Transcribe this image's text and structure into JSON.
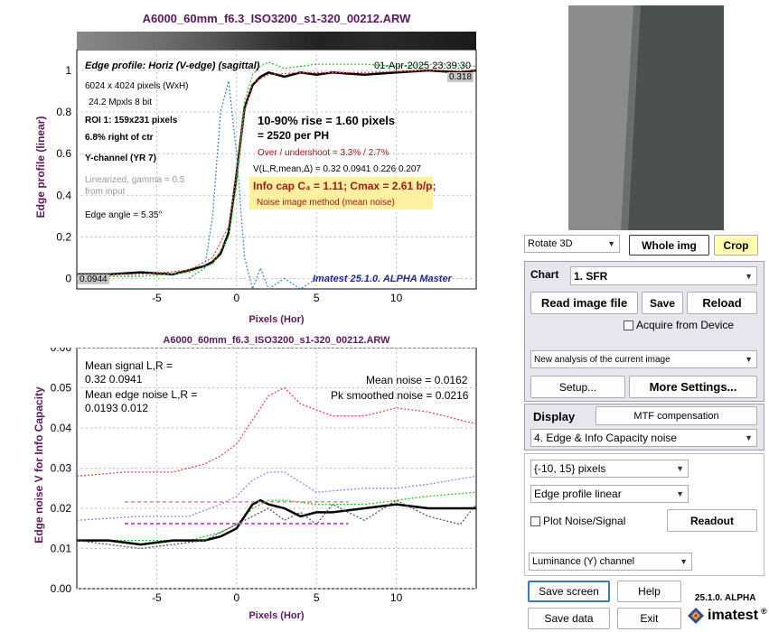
{
  "top_chart": {
    "title": "A6000_60mm_f6.3_ISO3200_s1-320_00212.ARW",
    "subtitle": "Edge profile: Horiz (V-edge) (sagittal)",
    "timestamp": "01-Apr-2025 23:39:30",
    "ylabel": "Edge profile (linear)",
    "xlabel": "Pixels (Hor)",
    "info_lines": [
      "6024 x 4024 pixels (WxH)",
      "24.2 Mpxls   8 bit"
    ],
    "roi": "ROI 1:  159x231 pixels",
    "pos": "6.8% right of ctr",
    "channel": "Y-channel  (YR 7)",
    "linearized": [
      "Linearized, gamma = 0.5",
      "from input"
    ],
    "edge_angle": "Edge angle = 5.35°",
    "rise": "10-90% rise = 1.60 pixels",
    "per_ph": "=   2520 per PH",
    "overshoot": "Over / undershoot = 3.3% /  2.7%",
    "vstats": "V(L,R,mean,Δ) = 0.32  0.0941  0.226  0.207",
    "infocap": "Info cap C₄ = 1.11;  Cmax = 2.61 b/p;",
    "noise_method": "Noise image method (mean noise)",
    "label_hi": "0.318",
    "label_lo": "0.0944",
    "watermark": "Imatest 25.1.0. ALPHA Master"
  },
  "bottom_chart": {
    "title": "A6000_60mm_f6.3_ISO3200_s1-320_00212.ARW",
    "ylabel": "Edge noise V for Info Capacity",
    "xlabel": "Pixels (Hor)",
    "mean_signal": [
      "Mean signal L,R =",
      "  0.32  0.0941"
    ],
    "mean_edge_noise": [
      "Mean edge noise L,R =",
      "  0.0193  0.012"
    ],
    "mean_noise": "Mean noise = 0.0162",
    "pk_noise": "Pk smoothed noise = 0.0216"
  },
  "chart_data": [
    {
      "type": "line",
      "title": "A6000_60mm_f6.3_ISO3200_s1-320_00212.ARW",
      "xlabel": "Pixels (Hor)",
      "ylabel": "Edge profile (linear)",
      "xlim": [
        -10,
        15
      ],
      "ylim": [
        -0.05,
        1.1
      ],
      "xticks": [
        -5,
        0,
        5,
        10
      ],
      "yticks": [
        0,
        0.2,
        0.4,
        0.6,
        0.8,
        1
      ],
      "grid": true,
      "series": [
        {
          "color": "#000000",
          "x": [
            -10,
            -8,
            -6,
            -4,
            -3,
            -2,
            -1.5,
            -1,
            -0.5,
            0,
            0.5,
            1,
            1.5,
            2,
            3,
            4,
            5,
            6,
            8,
            10,
            12,
            14,
            15
          ],
          "y": [
            0.02,
            0.02,
            0.03,
            0.02,
            0.04,
            0.06,
            0.08,
            0.12,
            0.22,
            0.5,
            0.82,
            0.93,
            0.97,
            0.99,
            0.97,
            0.99,
            0.98,
            0.99,
            0.98,
            0.99,
            1.0,
            0.99,
            1.0
          ]
        },
        {
          "color": "#22cc22",
          "x": [
            -10,
            -6,
            -3,
            -1.5,
            -0.5,
            0,
            0.5,
            1,
            1.5,
            2,
            3,
            5,
            8,
            10,
            12,
            15
          ],
          "y": [
            0.01,
            0.01,
            0.03,
            0.07,
            0.2,
            0.45,
            0.85,
            0.98,
            1.02,
            1.04,
            1.01,
            1.03,
            1.03,
            1.02,
            1.03,
            1.02
          ]
        },
        {
          "color": "#ee4444",
          "x": [
            -10,
            -6,
            -3,
            -1.5,
            -0.5,
            0,
            0.5,
            1,
            2,
            4,
            8,
            12,
            15
          ],
          "y": [
            0.02,
            0.02,
            0.04,
            0.1,
            0.25,
            0.5,
            0.8,
            0.94,
            0.98,
            0.99,
            0.99,
            1.0,
            1.0
          ]
        },
        {
          "color": "#4488bb",
          "x": [
            -3,
            -2,
            -1.5,
            -1,
            -0.5,
            0,
            0.5,
            1,
            1.5,
            2,
            3,
            4,
            5
          ],
          "y": [
            0.0,
            0.05,
            0.3,
            0.8,
            0.95,
            0.6,
            0.1,
            -0.05,
            0.05,
            -0.05,
            0.0,
            -0.05,
            0.0
          ]
        }
      ]
    },
    {
      "type": "line",
      "title": "A6000_60mm_f6.3_ISO3200_s1-320_00212.ARW",
      "xlabel": "Pixels (Hor)",
      "ylabel": "Edge noise V for Info Capacity",
      "xlim": [
        -10,
        15
      ],
      "ylim": [
        0,
        0.06
      ],
      "xticks": [
        -5,
        0,
        5,
        10
      ],
      "yticks": [
        0,
        0.01,
        0.02,
        0.03,
        0.04,
        0.05,
        0.06
      ],
      "grid": true,
      "series": [
        {
          "color": "#ee4444",
          "x": [
            -10,
            -7,
            -4,
            -2,
            -1,
            0,
            1,
            2,
            3,
            4,
            6,
            8,
            10,
            12,
            14,
            15
          ],
          "y": [
            0.028,
            0.029,
            0.029,
            0.031,
            0.033,
            0.036,
            0.042,
            0.048,
            0.05,
            0.046,
            0.043,
            0.043,
            0.045,
            0.044,
            0.042,
            0.041
          ]
        },
        {
          "color": "#8888ee",
          "x": [
            -10,
            -6,
            -3,
            -1,
            0,
            1,
            2,
            3,
            5,
            8,
            10,
            12,
            15
          ],
          "y": [
            0.017,
            0.018,
            0.018,
            0.021,
            0.023,
            0.027,
            0.029,
            0.029,
            0.024,
            0.025,
            0.025,
            0.026,
            0.028
          ]
        },
        {
          "color": "#22cc22",
          "x": [
            -10,
            -6,
            -3,
            -1,
            0,
            1,
            2,
            3,
            5,
            8,
            10,
            12,
            15
          ],
          "y": [
            0.012,
            0.012,
            0.012,
            0.014,
            0.016,
            0.02,
            0.022,
            0.022,
            0.021,
            0.021,
            0.022,
            0.023,
            0.024
          ]
        },
        {
          "color": "#000000",
          "x": [
            -10,
            -8,
            -6,
            -4,
            -2,
            -1,
            0,
            0.5,
            1,
            1.5,
            2,
            3,
            4,
            5,
            6,
            8,
            10,
            12,
            14,
            15
          ],
          "y": [
            0.012,
            0.012,
            0.011,
            0.012,
            0.012,
            0.013,
            0.015,
            0.018,
            0.021,
            0.022,
            0.021,
            0.02,
            0.018,
            0.019,
            0.019,
            0.02,
            0.021,
            0.02,
            0.02,
            0.02
          ]
        },
        {
          "color": "#555555",
          "x": [
            -10,
            -8,
            -6,
            -4,
            -2,
            0,
            1,
            2,
            3,
            4,
            5,
            6,
            8,
            10,
            12,
            14,
            15
          ],
          "y": [
            0.012,
            0.011,
            0.01,
            0.011,
            0.012,
            0.016,
            0.018,
            0.02,
            0.017,
            0.019,
            0.016,
            0.021,
            0.017,
            0.022,
            0.018,
            0.016,
            0.021
          ]
        },
        {
          "color": "#dd44dd",
          "x": [
            -7,
            7
          ],
          "y": [
            0.0162,
            0.0162
          ]
        },
        {
          "color": "#ee6688",
          "x": [
            -7,
            7
          ],
          "y": [
            0.0216,
            0.0216
          ]
        }
      ]
    }
  ],
  "right_panel": {
    "rotate_select": "Rotate 3D",
    "whole_img": "Whole img",
    "crop": "Crop",
    "chart_label": "Chart",
    "chart_select": "1. SFR",
    "read_image": "Read image file",
    "save": "Save",
    "reload": "Reload",
    "acquire": "Acquire from Device",
    "analysis_select": "New analysis of the current image",
    "setup": "Setup...",
    "more_settings": "More Settings...",
    "display_label": "Display",
    "mtf_comp": "MTF compensation",
    "display_select": "4. Edge & Info Capacity noise",
    "range_select": "{-10, 15} pixels",
    "profile_select": "Edge profile linear",
    "plot_noise": "Plot Noise/Signal",
    "readout": "Readout",
    "channel_select": "Luminance (Y) channel",
    "save_screen": "Save screen",
    "help": "Help",
    "save_data": "Save data",
    "exit": "Exit",
    "version": "25.1.0. ALPHA",
    "brand": "imatest",
    "brand_mark": "®"
  },
  "colors": {
    "title_purple": "#5a1a5a",
    "panel_bg": "#e6e6ee",
    "crop_yellow": "#ffffb0",
    "infocap_bg": "#fff0a0"
  }
}
